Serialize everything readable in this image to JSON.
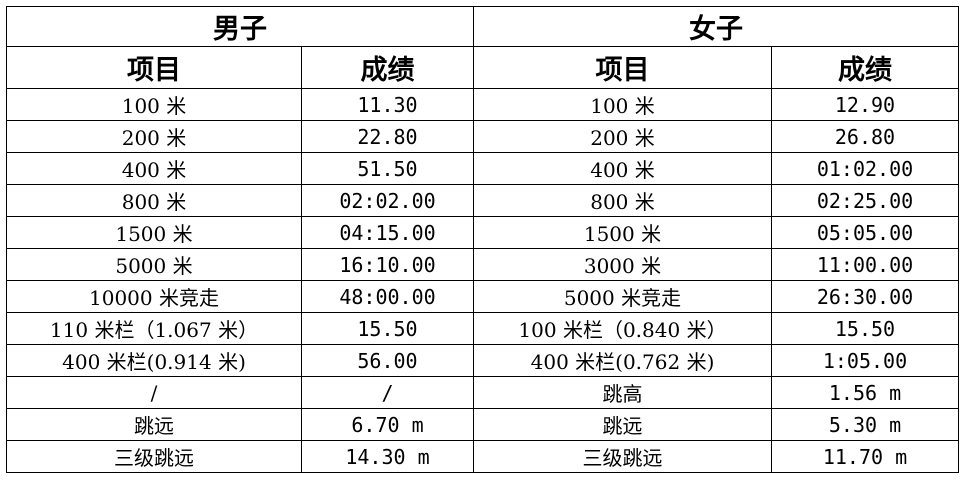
{
  "groups": {
    "men": "男子",
    "women": "女子"
  },
  "subheaders": {
    "event": "项目",
    "result": "成绩"
  },
  "rows": [
    {
      "men_event": "100 米",
      "men_result": "11.30",
      "women_event": "100 米",
      "women_result": "12.90"
    },
    {
      "men_event": "200 米",
      "men_result": "22.80",
      "women_event": "200 米",
      "women_result": "26.80"
    },
    {
      "men_event": "400 米",
      "men_result": "51.50",
      "women_event": "400 米",
      "women_result": "01:02.00"
    },
    {
      "men_event": "800 米",
      "men_result": "02:02.00",
      "women_event": "800 米",
      "women_result": "02:25.00"
    },
    {
      "men_event": "1500 米",
      "men_result": "04:15.00",
      "women_event": "1500 米",
      "women_result": "05:05.00"
    },
    {
      "men_event": "5000 米",
      "men_result": "16:10.00",
      "women_event": "3000 米",
      "women_result": "11:00.00"
    },
    {
      "men_event": "10000 米竞走",
      "men_result": "48:00.00",
      "women_event": "5000 米竞走",
      "women_result": "26:30.00"
    },
    {
      "men_event": "110 米栏（1.067 米）",
      "men_result": "15.50",
      "women_event": "100 米栏（0.840 米）",
      "women_result": "15.50"
    },
    {
      "men_event": "400 米栏(0.914 米)",
      "men_result": "56.00",
      "women_event": "400 米栏(0.762 米)",
      "women_result": "1:05.00"
    },
    {
      "men_event": "/",
      "men_result": "/",
      "women_event": "跳高",
      "women_result": "1.56 m"
    },
    {
      "men_event": "跳远",
      "men_result": "6.70 m",
      "women_event": "跳远",
      "women_result": "5.30 m"
    },
    {
      "men_event": "三级跳远",
      "men_result": "14.30 m",
      "women_event": "三级跳远",
      "women_result": "11.70 m"
    }
  ]
}
